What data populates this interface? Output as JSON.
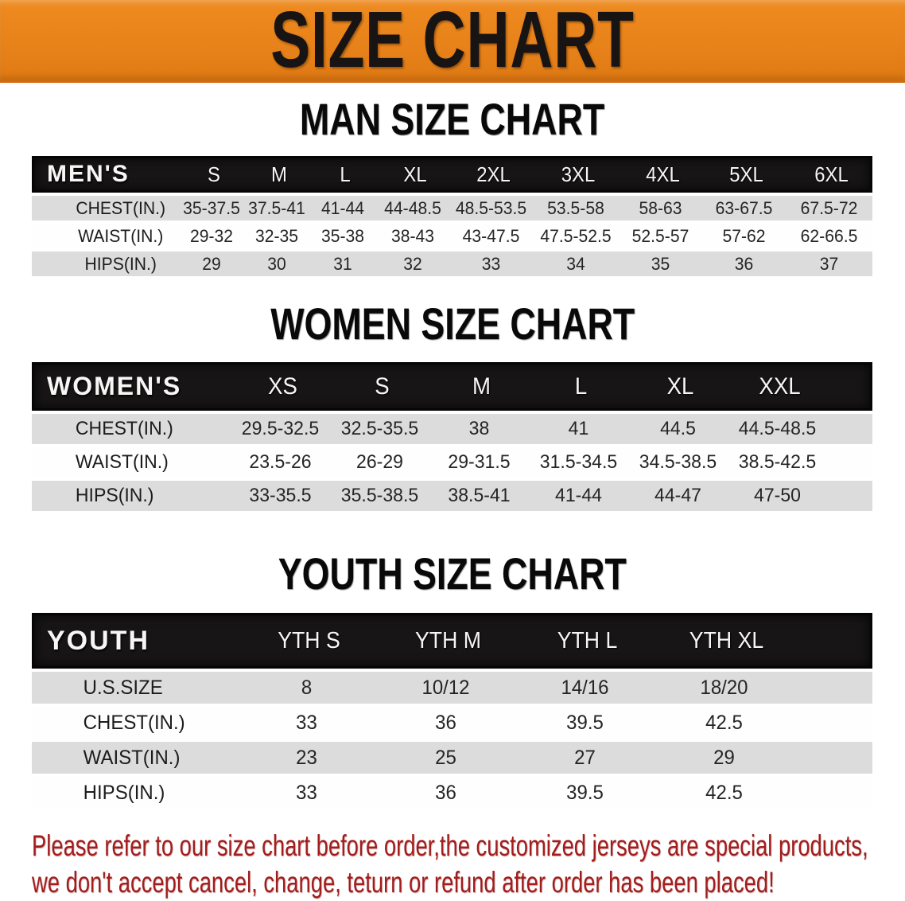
{
  "banner": {
    "title": "SIZE CHART",
    "bg_color": "#E8821A",
    "text_color": "#181414"
  },
  "sections": [
    {
      "id": "men",
      "heading": "MAN SIZE CHART",
      "header_label": "MEN'S",
      "columns": [
        "S",
        "M",
        "L",
        "XL",
        "2XL",
        "3XL",
        "4XL",
        "5XL",
        "6XL"
      ],
      "rows": [
        {
          "label": "CHEST(IN.)",
          "values": [
            "35-37.5",
            "37.5-41",
            "41-44",
            "44-48.5",
            "48.5-53.5",
            "53.5-58",
            "58-63",
            "63-67.5",
            "67.5-72"
          ]
        },
        {
          "label": "WAIST(IN.)",
          "values": [
            "29-32",
            "32-35",
            "35-38",
            "38-43",
            "43-47.5",
            "47.5-52.5",
            "52.5-57",
            "57-62",
            "62-66.5"
          ]
        },
        {
          "label": "HIPS(IN.)",
          "values": [
            "29",
            "30",
            "31",
            "32",
            "33",
            "34",
            "35",
            "36",
            "37"
          ]
        }
      ]
    },
    {
      "id": "women",
      "heading": "WOMEN SIZE CHART",
      "header_label": "WOMEN'S",
      "columns": [
        "XS",
        "S",
        "M",
        "L",
        "XL",
        "XXL"
      ],
      "rows": [
        {
          "label": "CHEST(IN.)",
          "values": [
            "29.5-32.5",
            "32.5-35.5",
            "38",
            "41",
            "44.5",
            "44.5-48.5"
          ]
        },
        {
          "label": "WAIST(IN.)",
          "values": [
            "23.5-26",
            "26-29",
            "29-31.5",
            "31.5-34.5",
            "34.5-38.5",
            "38.5-42.5"
          ]
        },
        {
          "label": "HIPS(IN.)",
          "values": [
            "33-35.5",
            "35.5-38.5",
            "38.5-41",
            "41-44",
            "44-47",
            "47-50"
          ]
        }
      ]
    },
    {
      "id": "youth",
      "heading": "YOUTH SIZE CHART",
      "header_label": "YOUTH",
      "columns": [
        "YTH S",
        "YTH M",
        "YTH L",
        "YTH XL"
      ],
      "rows": [
        {
          "label": "U.S.SIZE",
          "values": [
            "8",
            "10/12",
            "14/16",
            "18/20"
          ]
        },
        {
          "label": "CHEST(IN.)",
          "values": [
            "33",
            "36",
            "39.5",
            "42.5"
          ]
        },
        {
          "label": "WAIST(IN.)",
          "values": [
            "23",
            "25",
            "27",
            "29"
          ]
        },
        {
          "label": "HIPS(IN.)",
          "values": [
            "33",
            "36",
            "39.5",
            "42.5"
          ]
        }
      ]
    }
  ],
  "table_style": {
    "header_bg": "#171515",
    "shaded_row_bg": "#DCDCDC",
    "plain_row_bg": "#FEFEFE"
  },
  "disclaimer": {
    "line1": "Please refer to our size chart before order,the customized jerseys are special products,",
    "line2": "we don't accept cancel, change, teturn or refund after order has been placed!",
    "color": "#A21D1D"
  }
}
